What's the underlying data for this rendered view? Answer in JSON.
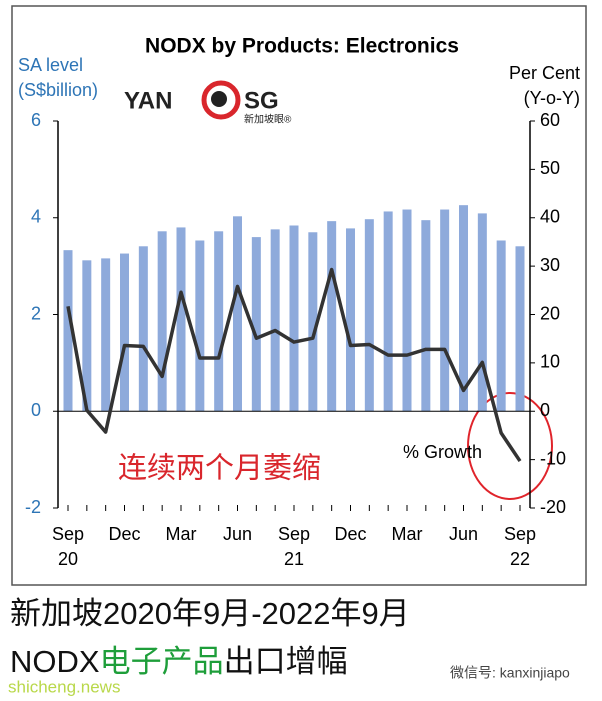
{
  "chart_data": {
    "type": "bar_line",
    "title": "NODX by Products: Electronics",
    "y_label": [
      "SA level",
      "(S$billion)"
    ],
    "y2_label": [
      "Per Cent",
      "(Y-o-Y)"
    ],
    "logo": [
      "YAN",
      "SG",
      "新加坡眼®"
    ],
    "categories": [
      [
        "Sep",
        "20"
      ],
      null,
      null,
      [
        "Dec"
      ],
      null,
      null,
      [
        "Mar"
      ],
      null,
      null,
      [
        "Jun"
      ],
      null,
      null,
      [
        "Sep",
        "21"
      ],
      null,
      null,
      [
        "Dec"
      ],
      null,
      null,
      [
        "Mar"
      ],
      null,
      null,
      [
        "Jun"
      ],
      null,
      null,
      [
        "Sep",
        "22"
      ]
    ],
    "series": [
      {
        "name": "SA level",
        "color": "#8eaadb",
        "values": [
          3.33,
          3.12,
          3.16,
          3.26,
          3.41,
          3.72,
          3.8,
          3.53,
          3.72,
          4.03,
          3.6,
          3.76,
          3.84,
          3.7,
          3.93,
          3.78,
          3.97,
          4.13,
          4.17,
          3.95,
          4.17,
          4.26,
          4.09,
          3.53,
          3.41
        ]
      },
      {
        "name": "% Growth",
        "color": "#333333",
        "axis": "y2",
        "values": [
          21.7,
          0.2,
          -4.3,
          13.6,
          13.4,
          7.2,
          24.6,
          11,
          11,
          25.8,
          15.1,
          16.7,
          14.3,
          15.1,
          29.3,
          13.6,
          13.8,
          11.6,
          11.6,
          12.8,
          12.8,
          4.3,
          10.1,
          -4.5,
          -10.3
        ]
      }
    ],
    "ylim": [
      -2,
      6
    ],
    "yticks": [
      -2,
      0,
      2,
      4,
      6
    ],
    "y2lim": [
      -20,
      60
    ],
    "y2ticks": [
      -20,
      -10,
      0,
      10,
      20,
      30,
      40,
      50,
      60
    ],
    "annotation": "连续两个月萎缩",
    "caption": [
      "新加坡2020年9月-2022年9月",
      "NODX",
      "电子产品",
      "出口增幅"
    ],
    "watermark": [
      "shicheng.news",
      "微信号: kanxinjiapo"
    ]
  }
}
